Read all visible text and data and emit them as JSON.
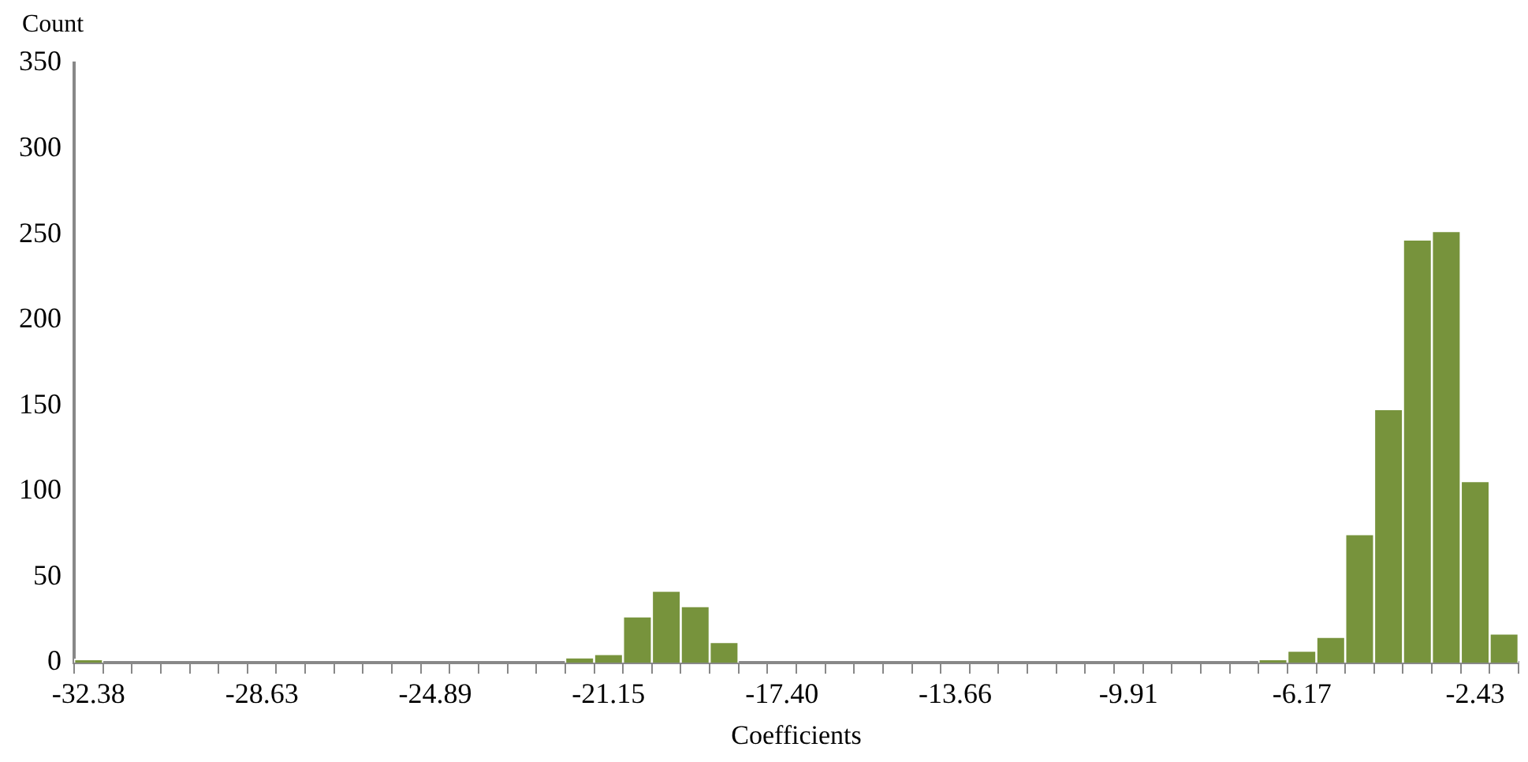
{
  "chart_data": {
    "type": "bar",
    "xlabel": "Coefficients",
    "ylabel": "Count",
    "categories": [
      "-32.38",
      null,
      null,
      null,
      null,
      null,
      "-28.63",
      null,
      null,
      null,
      null,
      null,
      "-24.89",
      null,
      null,
      null,
      null,
      null,
      "-21.15",
      null,
      null,
      null,
      null,
      null,
      "-17.40",
      null,
      null,
      null,
      null,
      null,
      "-13.66",
      null,
      null,
      null,
      null,
      null,
      "-9.91",
      null,
      null,
      null,
      null,
      null,
      "-6.17",
      null,
      null,
      null,
      null,
      null,
      "-2.43",
      null
    ],
    "values": [
      2,
      0,
      0,
      0,
      0,
      0,
      0,
      0,
      0,
      0,
      0,
      0,
      0,
      0,
      0,
      0,
      0,
      3,
      5,
      27,
      42,
      33,
      12,
      0,
      0,
      0,
      0,
      0,
      0,
      0,
      0,
      0,
      0,
      0,
      0,
      0,
      0,
      0,
      0,
      0,
      0,
      2,
      7,
      15,
      75,
      148,
      247,
      252,
      106,
      17
    ],
    "color": "#77933c",
    "ylim": [
      0,
      350
    ],
    "yticks": [
      0,
      50,
      100,
      150,
      200,
      250,
      300,
      350
    ],
    "grid": false
  }
}
